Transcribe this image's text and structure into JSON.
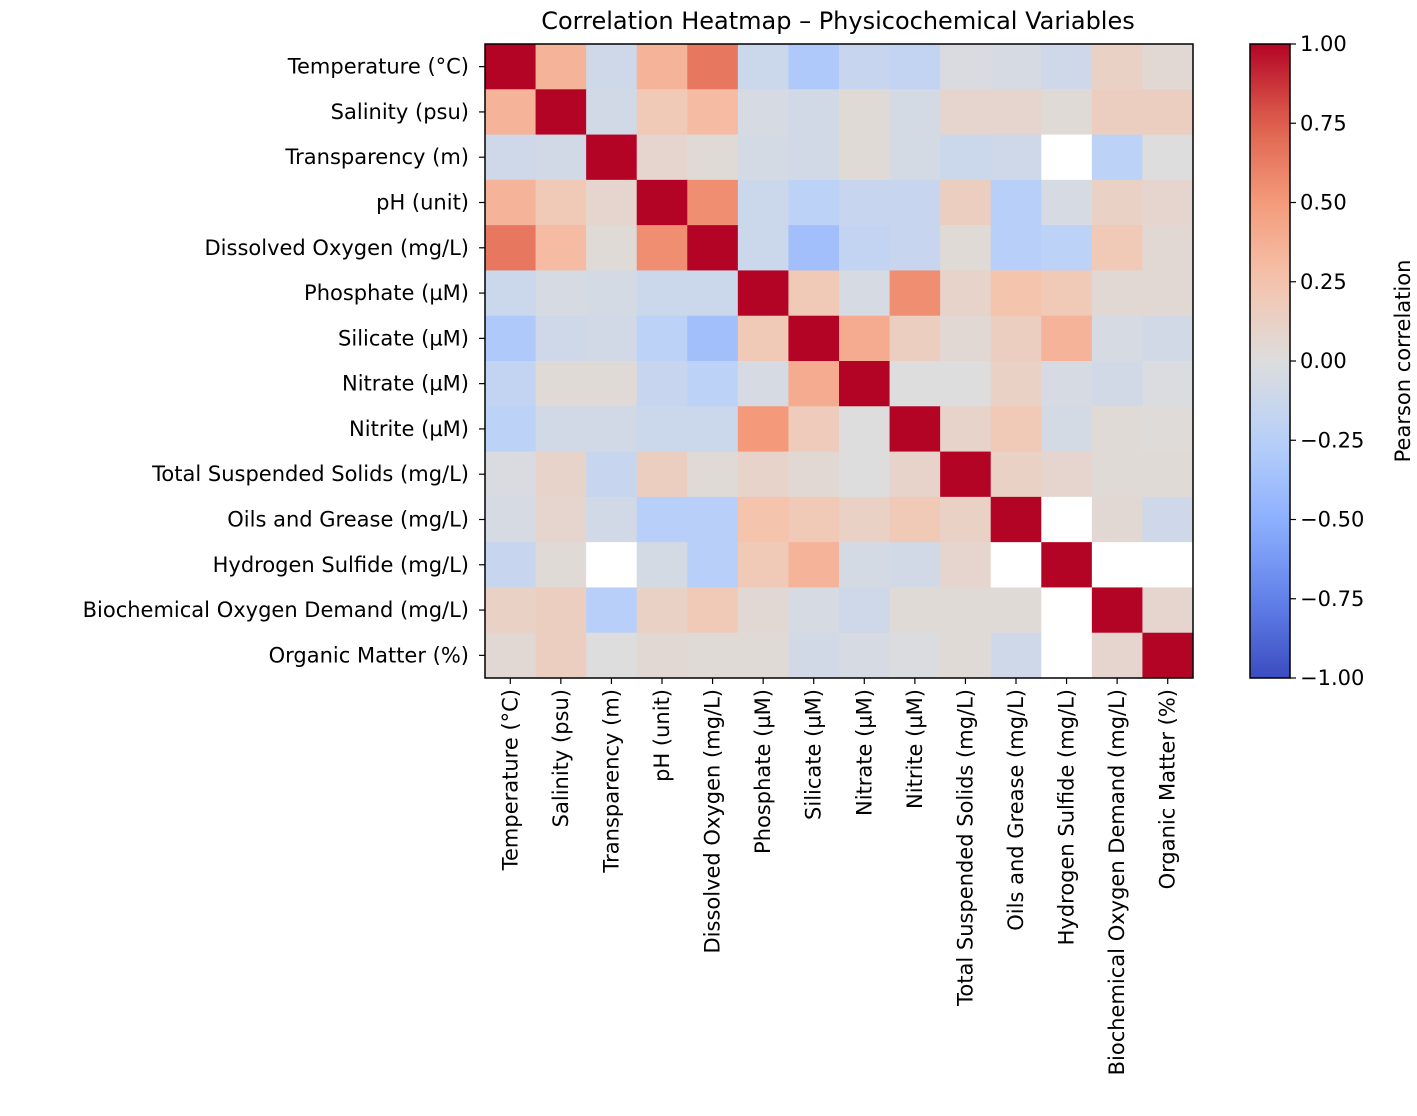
{
  "chart_data": {
    "type": "heatmap",
    "title": "Correlation Heatmap – Physicochemical Variables",
    "colorbar_label": "Pearson correlation",
    "colormap": "coolwarm",
    "vmin": -1,
    "vmax": 1,
    "colorbar_ticks": [
      "1.00",
      "0.75",
      "0.50",
      "0.25",
      "0.00",
      "−0.25",
      "−0.50",
      "−0.75",
      "−1.00"
    ],
    "colorbar_tick_values": [
      1,
      0.75,
      0.5,
      0.25,
      0,
      -0.25,
      -0.5,
      -0.75,
      -1
    ],
    "variables": [
      "Temperature (°C)",
      "Salinity (psu)",
      "Transparency (m)",
      "pH (unit)",
      "Dissolved Oxygen (mg/L)",
      "Phosphate (µM)",
      "Silicate (µM)",
      "Nitrate (µM)",
      "Nitrite (µM)",
      "Total Suspended Solids (mg/L)",
      "Oils and Grease (mg/L)",
      "Hydrogen Sulfide (mg/L)",
      "Biochemical Oxygen Demand (mg/L)",
      "Organic Matter (%)"
    ],
    "matrix": [
      [
        1,
        0.35,
        -0.1,
        0.35,
        0.65,
        -0.12,
        -0.3,
        -0.15,
        -0.18,
        -0.03,
        -0.05,
        -0.1,
        0.12,
        0.05
      ],
      [
        0.35,
        1,
        -0.08,
        0.2,
        0.3,
        -0.05,
        -0.08,
        0.03,
        -0.06,
        0.08,
        0.08,
        0.03,
        0.15,
        0.15
      ],
      [
        -0.1,
        -0.08,
        1,
        0.08,
        0.03,
        -0.06,
        -0.08,
        0.03,
        -0.06,
        -0.12,
        -0.1,
        null,
        -0.22,
        0
      ],
      [
        0.35,
        0.2,
        0.08,
        1,
        0.55,
        -0.12,
        -0.22,
        -0.15,
        -0.15,
        0.15,
        -0.25,
        -0.05,
        0.12,
        0.08
      ],
      [
        0.65,
        0.3,
        0.03,
        0.55,
        1,
        -0.12,
        -0.38,
        -0.18,
        -0.15,
        0.03,
        -0.25,
        -0.22,
        0.2,
        0.05
      ],
      [
        -0.12,
        -0.05,
        -0.06,
        -0.12,
        -0.12,
        1,
        0.2,
        -0.05,
        0.55,
        0.1,
        0.25,
        0.2,
        0.05,
        0.05
      ],
      [
        -0.3,
        -0.1,
        -0.08,
        -0.22,
        -0.38,
        0.2,
        1,
        0.4,
        0.15,
        0.05,
        0.15,
        0.35,
        -0.05,
        -0.08
      ],
      [
        -0.18,
        0.03,
        0.03,
        -0.15,
        -0.22,
        -0.05,
        0.4,
        1,
        0,
        0,
        0.12,
        -0.05,
        -0.08,
        -0.02
      ],
      [
        -0.22,
        -0.08,
        -0.08,
        -0.12,
        -0.12,
        0.5,
        0.18,
        0,
        1,
        0.1,
        0.2,
        -0.06,
        0.03,
        0.02
      ],
      [
        -0.03,
        0.1,
        -0.15,
        0.15,
        0.03,
        0.1,
        0.05,
        0,
        0.1,
        1,
        0.12,
        0.08,
        0.03,
        0.03
      ],
      [
        -0.05,
        0.08,
        -0.08,
        -0.25,
        -0.25,
        0.25,
        0.2,
        0.12,
        0.2,
        0.12,
        1,
        null,
        0.05,
        -0.1
      ],
      [
        -0.15,
        0.03,
        null,
        -0.06,
        -0.25,
        0.2,
        0.35,
        -0.06,
        -0.08,
        0.08,
        null,
        1,
        null,
        null
      ],
      [
        0.12,
        0.15,
        -0.25,
        0.12,
        0.2,
        0.05,
        -0.05,
        -0.1,
        0.03,
        0.03,
        0.03,
        null,
        1,
        0.08
      ],
      [
        0.05,
        0.15,
        0,
        0.05,
        0.03,
        0.03,
        -0.08,
        -0.05,
        -0.02,
        0.03,
        -0.1,
        null,
        0.08,
        1
      ]
    ]
  }
}
